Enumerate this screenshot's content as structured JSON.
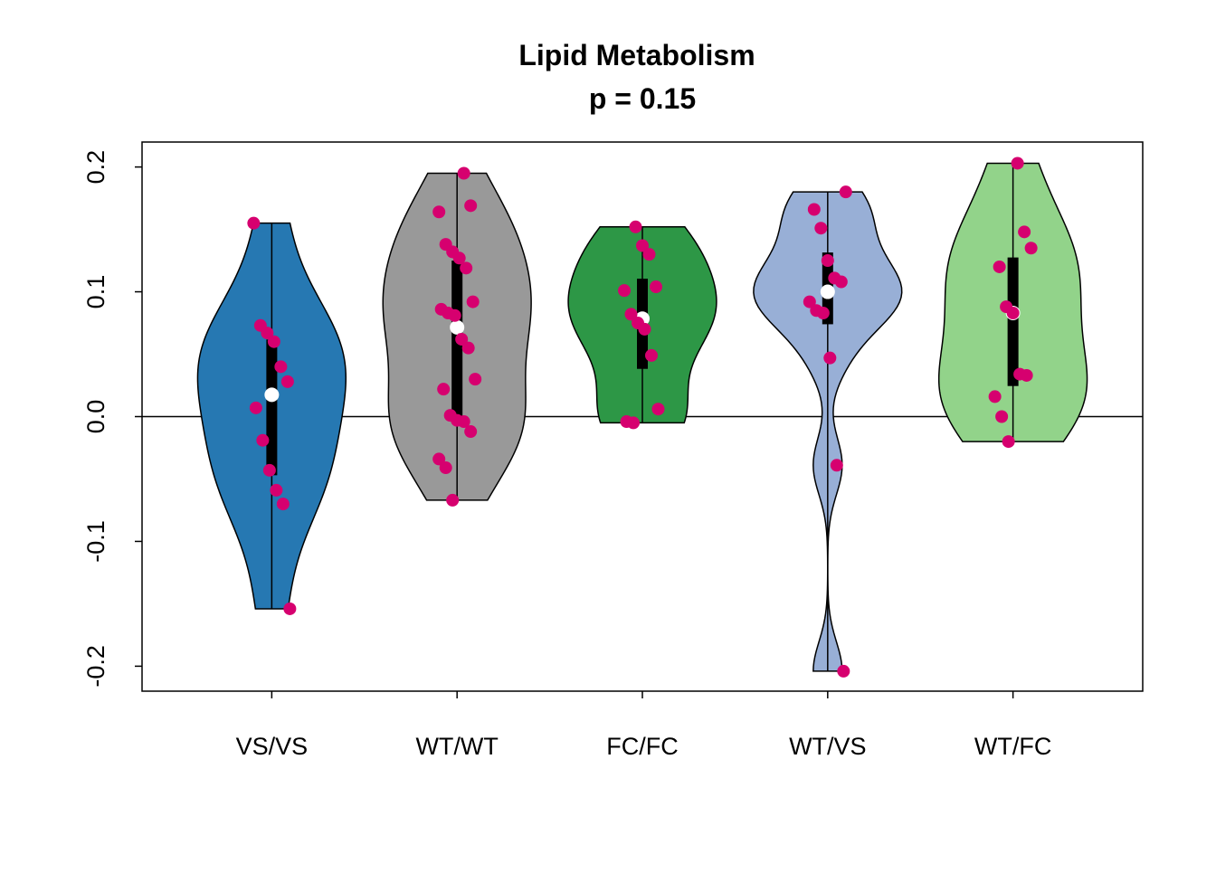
{
  "chart_data": {
    "type": "violin",
    "title": "Lipid Metabolism",
    "subtitle": "p = 0.15",
    "categories": [
      "VS/VS",
      "WT/WT",
      "FC/FC",
      "WT/VS",
      "WT/FC"
    ],
    "colors": [
      "#2678b2",
      "#999999",
      "#2d9746",
      "#98afd6",
      "#92d38a"
    ],
    "point_color": "#d6006f",
    "values": [
      [
        0.155,
        0.073,
        0.067,
        0.06,
        0.04,
        0.028,
        0.007,
        -0.019,
        -0.043,
        -0.059,
        -0.07,
        -0.154
      ],
      [
        0.195,
        0.169,
        0.164,
        0.138,
        0.132,
        0.127,
        0.119,
        0.092,
        0.086,
        0.083,
        0.081,
        0.062,
        0.055,
        0.03,
        0.022,
        0.001,
        -0.003,
        -0.004,
        -0.012,
        -0.034,
        -0.041,
        -0.067
      ],
      [
        0.152,
        0.137,
        0.13,
        0.104,
        0.101,
        0.082,
        0.075,
        0.07,
        0.049,
        0.006,
        -0.004,
        -0.005
      ],
      [
        0.18,
        0.166,
        0.151,
        0.125,
        0.111,
        0.108,
        0.092,
        0.085,
        0.083,
        0.047,
        -0.039,
        -0.204
      ],
      [
        0.203,
        0.148,
        0.135,
        0.12,
        0.088,
        0.083,
        0.034,
        0.033,
        0.016,
        0.0,
        -0.02
      ]
    ],
    "ylim": [
      -0.22,
      0.22
    ],
    "yticks": [
      -0.2,
      -0.1,
      {
        "value": 0,
        "label": "0.0"
      },
      0.1,
      0.2
    ],
    "reference_line": 0
  }
}
